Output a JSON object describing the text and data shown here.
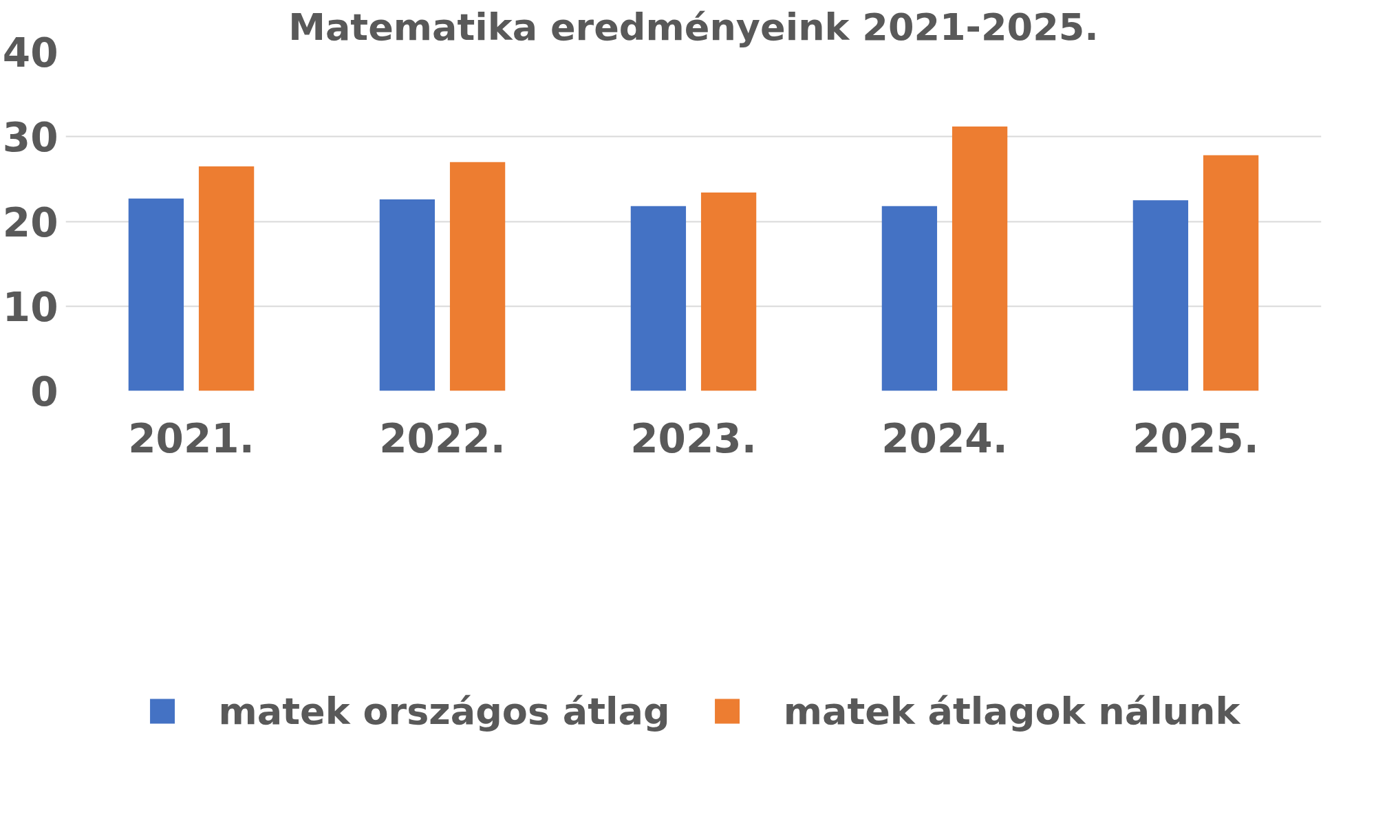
{
  "chart_data": {
    "type": "bar",
    "title": "Matematika eredményeink 2021-2025.",
    "categories": [
      "2021.",
      "2022.",
      "2023.",
      "2024.",
      "2025."
    ],
    "series": [
      {
        "name": "matek országos átlag",
        "color": "#4472c4",
        "values": [
          22.7,
          22.6,
          21.8,
          21.8,
          22.5
        ]
      },
      {
        "name": "matek átlagok nálunk",
        "color": "#ed7d31",
        "values": [
          26.5,
          27.0,
          23.4,
          31.2,
          27.8
        ]
      }
    ],
    "ylim": [
      0,
      40
    ],
    "yticks": [
      0,
      10,
      20,
      30,
      40
    ],
    "grid": "y",
    "legend": "bottom"
  }
}
